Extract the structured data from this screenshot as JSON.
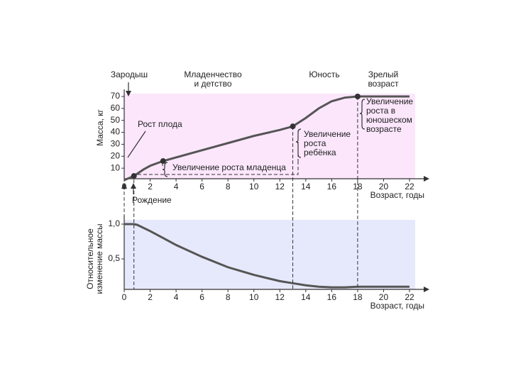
{
  "chart_data": [
    {
      "type": "line",
      "ylabel": "Масса, кг",
      "xlabel": "Возраст, годы",
      "x": [
        0,
        0.75,
        1.5,
        2,
        3,
        4,
        6,
        8,
        10,
        12,
        13,
        14,
        15,
        16,
        17,
        18,
        19,
        20,
        22
      ],
      "series": [
        {
          "color": "#555",
          "values": [
            0,
            3.5,
            9,
            12,
            16,
            19,
            25,
            31,
            37,
            42,
            45,
            52,
            60,
            66,
            69,
            70,
            70,
            70,
            70
          ]
        }
      ],
      "xlim": [
        0,
        22
      ],
      "xticks": [
        0,
        2,
        4,
        6,
        8,
        10,
        12,
        14,
        16,
        18,
        20,
        22
      ],
      "ylim": [
        0,
        70
      ],
      "yticks": [
        10,
        20,
        30,
        40,
        50,
        60,
        70
      ],
      "background": "#fbe6fb",
      "stages": [
        [
          "Зародыш"
        ],
        [
          "Младенчество",
          "и детство"
        ],
        [
          "Юность"
        ],
        [
          "Зрелый",
          "возраст"
        ]
      ],
      "annotations": [
        [
          "Рост плода"
        ],
        [
          "Увеличение роста младенца"
        ],
        [
          "Увеличение",
          "роста",
          "ребёнка"
        ],
        [
          "Увеличение",
          "роста в",
          "юношеском",
          "возрасте"
        ]
      ],
      "markers": [
        0.75,
        13,
        18
      ],
      "birth_label": "Рождение"
    },
    {
      "type": "line",
      "ylabel": [
        "Относительное",
        "изменение массы"
      ],
      "xlabel": "Возраст, годы",
      "x": [
        0,
        0.75,
        1,
        2,
        3,
        4,
        6,
        8,
        10,
        12,
        13,
        14,
        15,
        16,
        17,
        18,
        20,
        22
      ],
      "series": [
        {
          "color": "#555",
          "values": [
            1.0,
            1.0,
            0.99,
            0.9,
            0.8,
            0.7,
            0.53,
            0.38,
            0.27,
            0.18,
            0.15,
            0.12,
            0.1,
            0.09,
            0.09,
            0.1,
            0.1,
            0.1
          ]
        }
      ],
      "xlim": [
        0,
        22
      ],
      "xticks": [
        0,
        2,
        4,
        6,
        8,
        10,
        12,
        14,
        16,
        18,
        20,
        22
      ],
      "ylim": [
        0,
        1
      ],
      "yticks": [
        {
          "value": 0.5,
          "label": "0,5"
        },
        {
          "value": 1,
          "label": "1,0"
        }
      ],
      "background": "#e6e9fb"
    }
  ]
}
